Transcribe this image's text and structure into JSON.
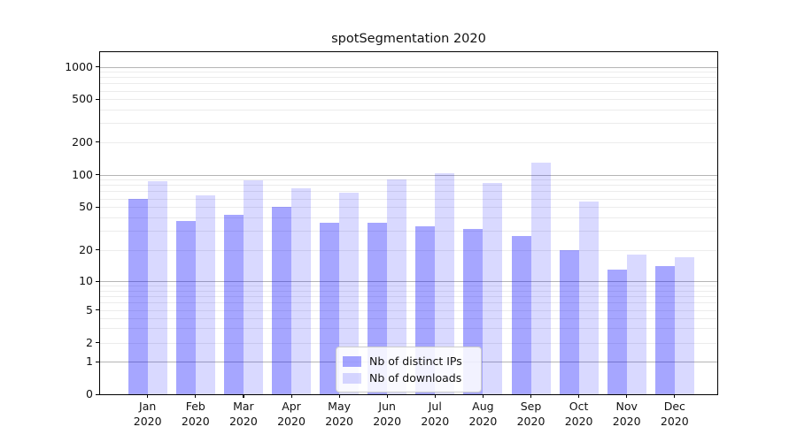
{
  "chart_data": {
    "type": "bar",
    "title": "spotSegmentation 2020",
    "categories": [
      "Jan",
      "Feb",
      "Mar",
      "Apr",
      "May",
      "Jun",
      "Jul",
      "Aug",
      "Sep",
      "Oct",
      "Nov",
      "Dec"
    ],
    "category_year": "2020",
    "series": [
      {
        "key": "distinct-ips",
        "name": "Nb of distinct IPs",
        "color": "rgba(0,0,255,0.35)",
        "values": [
          60,
          37,
          42,
          50,
          36,
          36,
          33,
          31,
          27,
          20,
          13,
          14
        ]
      },
      {
        "key": "downloads",
        "name": "Nb of downloads",
        "color": "rgba(0,0,255,0.15)",
        "values": [
          87,
          64,
          88,
          74,
          68,
          90,
          102,
          84,
          130,
          56,
          18,
          17
        ]
      }
    ],
    "yscale": "symlog",
    "yticks": [
      0,
      1,
      2,
      5,
      10,
      20,
      50,
      100,
      200,
      500,
      1000
    ],
    "ylim": [
      0,
      1400
    ],
    "xlabel": "",
    "ylabel": "",
    "grid": "on",
    "legend_position": "lower-center",
    "colors": {
      "major_grid": "#b5b5b5",
      "minor_grid": "#ececec",
      "spine": "#000000",
      "text": "#111111"
    }
  }
}
